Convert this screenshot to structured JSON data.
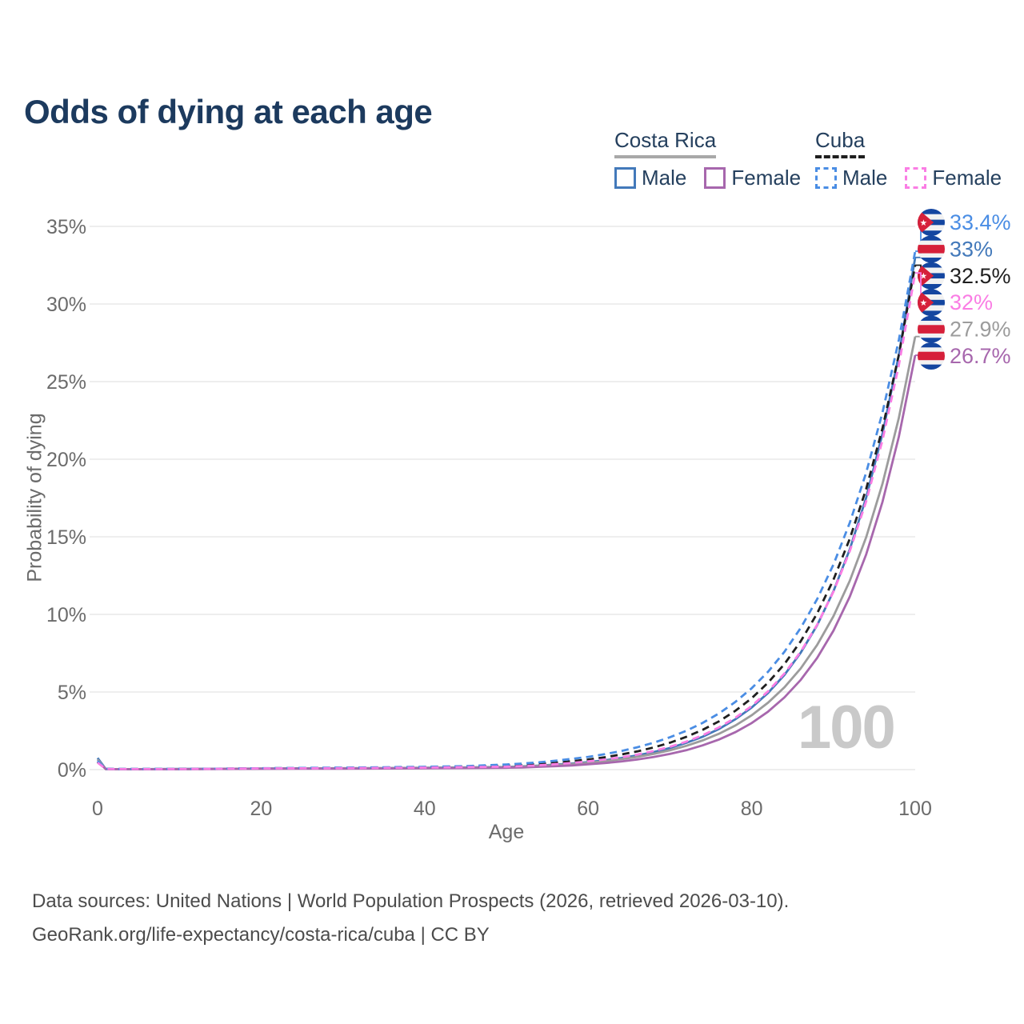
{
  "title": "Odds of dying at each age",
  "legend": {
    "groups": [
      {
        "name": "Costa Rica",
        "line_style": "solid",
        "line_color": "#a8a8a8",
        "items": [
          {
            "label": "Male",
            "color": "#4379ba",
            "dash": false
          },
          {
            "label": "Female",
            "color": "#a767ad",
            "dash": false
          }
        ]
      },
      {
        "name": "Cuba",
        "line_style": "dashed",
        "line_color": "#1f1f1f",
        "items": [
          {
            "label": "Male",
            "color": "#4a8de4",
            "dash": true
          },
          {
            "label": "Female",
            "color": "#fa7de4",
            "dash": true
          }
        ]
      }
    ]
  },
  "watermark": "100",
  "footer": {
    "line1": "Data sources: United Nations | World Population Prospects (2026, retrieved 2026-03-10).",
    "line2": "GeoRank.org/life-expectancy/costa-rica/cuba | CC BY"
  },
  "colors": {
    "title_text": "#1c3a5e",
    "axis_text": "#6b6b6b",
    "grid": "#e9e9e9",
    "footer_text": "#4c4c4c",
    "watermark_text": "#c9c9c9",
    "flag_blue": "#1446a0",
    "flag_red": "#d6203a"
  },
  "chart_data": {
    "type": "line",
    "title": "Odds of dying at each age",
    "xlabel": "Age",
    "ylabel": "Probability of dying",
    "xlim": [
      0,
      100
    ],
    "ylim": [
      0,
      35
    ],
    "grid": "horizontal-only",
    "legend_position": "top-right",
    "yticks": [
      {
        "v": 0,
        "label": "0%"
      },
      {
        "v": 5,
        "label": "5%"
      },
      {
        "v": 10,
        "label": "10%"
      },
      {
        "v": 15,
        "label": "15%"
      },
      {
        "v": 20,
        "label": "20%"
      },
      {
        "v": 25,
        "label": "25%"
      },
      {
        "v": 30,
        "label": "30%"
      },
      {
        "v": 35,
        "label": "35%"
      }
    ],
    "xticks": [
      {
        "v": 0,
        "label": "0"
      },
      {
        "v": 20,
        "label": "20"
      },
      {
        "v": 40,
        "label": "40"
      },
      {
        "v": 60,
        "label": "60"
      },
      {
        "v": 80,
        "label": "80"
      },
      {
        "v": 100,
        "label": "100"
      }
    ],
    "x": [
      0,
      1,
      2,
      5,
      10,
      15,
      20,
      25,
      30,
      35,
      40,
      45,
      50,
      52,
      54,
      56,
      58,
      60,
      62,
      64,
      66,
      68,
      70,
      72,
      74,
      76,
      78,
      80,
      82,
      84,
      86,
      88,
      90,
      92,
      94,
      96,
      98,
      100
    ],
    "series": [
      {
        "name": "Costa Rica — Male",
        "color": "#4379ba",
        "dash": false,
        "values": [
          0.75,
          0.04,
          0.03,
          0.03,
          0.04,
          0.05,
          0.07,
          0.08,
          0.09,
          0.1,
          0.12,
          0.14,
          0.17,
          0.21,
          0.26,
          0.32,
          0.39,
          0.48,
          0.6,
          0.74,
          0.91,
          1.13,
          1.39,
          1.72,
          2.12,
          2.62,
          3.24,
          4.0,
          4.94,
          6.1,
          7.53,
          9.3,
          11.49,
          14.19,
          17.52,
          21.64,
          26.72,
          33.0
        ]
      },
      {
        "name": "Costa Rica — Both sexes",
        "color": "#9c9c9c",
        "dash": false,
        "values": [
          0.65,
          0.035,
          0.03,
          0.025,
          0.03,
          0.045,
          0.06,
          0.07,
          0.08,
          0.09,
          0.11,
          0.13,
          0.16,
          0.19,
          0.24,
          0.29,
          0.36,
          0.44,
          0.54,
          0.67,
          0.82,
          1.01,
          1.24,
          1.53,
          1.88,
          2.31,
          2.84,
          3.5,
          4.31,
          5.3,
          6.52,
          8.03,
          9.88,
          12.16,
          14.97,
          18.42,
          22.67,
          27.9
        ]
      },
      {
        "name": "Costa Rica — Female",
        "color": "#a767ad",
        "dash": false,
        "values": [
          0.55,
          0.03,
          0.025,
          0.02,
          0.025,
          0.04,
          0.05,
          0.055,
          0.06,
          0.07,
          0.085,
          0.1,
          0.12,
          0.14,
          0.18,
          0.22,
          0.27,
          0.34,
          0.42,
          0.52,
          0.65,
          0.81,
          1.01,
          1.25,
          1.56,
          1.94,
          2.41,
          3.0,
          3.73,
          4.65,
          5.78,
          7.19,
          8.95,
          11.14,
          13.86,
          17.25,
          21.46,
          26.7
        ]
      },
      {
        "name": "Cuba — Both sexes",
        "color": "#1f1f1f",
        "dash": true,
        "values": [
          0.5,
          0.045,
          0.035,
          0.035,
          0.04,
          0.055,
          0.08,
          0.095,
          0.11,
          0.13,
          0.16,
          0.2,
          0.25,
          0.3,
          0.36,
          0.44,
          0.54,
          0.65,
          0.79,
          0.97,
          1.17,
          1.43,
          1.73,
          2.11,
          2.56,
          3.11,
          3.79,
          4.6,
          5.6,
          6.8,
          8.27,
          10.06,
          12.23,
          14.87,
          18.08,
          21.99,
          26.73,
          32.5
        ]
      },
      {
        "name": "Cuba — Male",
        "color": "#4a8de4",
        "dash": true,
        "values": [
          0.55,
          0.05,
          0.04,
          0.04,
          0.04,
          0.06,
          0.09,
          0.11,
          0.13,
          0.15,
          0.18,
          0.22,
          0.33,
          0.39,
          0.47,
          0.57,
          0.69,
          0.82,
          0.99,
          1.19,
          1.44,
          1.73,
          2.08,
          2.5,
          3.01,
          3.62,
          4.36,
          5.24,
          6.3,
          7.59,
          9.13,
          10.98,
          13.21,
          15.9,
          19.13,
          23.01,
          27.69,
          33.4
        ]
      },
      {
        "name": "Cuba — Female",
        "color": "#fa7de4",
        "dash": true,
        "values": [
          0.45,
          0.04,
          0.03,
          0.03,
          0.035,
          0.05,
          0.075,
          0.085,
          0.095,
          0.11,
          0.13,
          0.16,
          0.19,
          0.23,
          0.28,
          0.35,
          0.43,
          0.53,
          0.65,
          0.79,
          0.97,
          1.2,
          1.47,
          1.8,
          2.21,
          2.72,
          3.34,
          4.1,
          5.04,
          6.19,
          7.6,
          9.33,
          11.46,
          14.07,
          17.28,
          21.22,
          26.06,
          32.0
        ]
      }
    ],
    "end_labels": [
      {
        "text": "33.4%",
        "color": "#4a8de4",
        "flag": "cuba",
        "value": 33.4
      },
      {
        "text": "33%",
        "color": "#4379ba",
        "flag": "costa-rica",
        "value": 33.0
      },
      {
        "text": "32.5%",
        "color": "#1f1f1f",
        "flag": "cuba",
        "value": 32.5
      },
      {
        "text": "32%",
        "color": "#fa7de4",
        "flag": "cuba",
        "value": 32.0
      },
      {
        "text": "27.9%",
        "color": "#9c9c9c",
        "flag": "costa-rica",
        "value": 27.9
      },
      {
        "text": "26.7%",
        "color": "#a767ad",
        "flag": "costa-rica",
        "value": 26.7
      }
    ]
  }
}
